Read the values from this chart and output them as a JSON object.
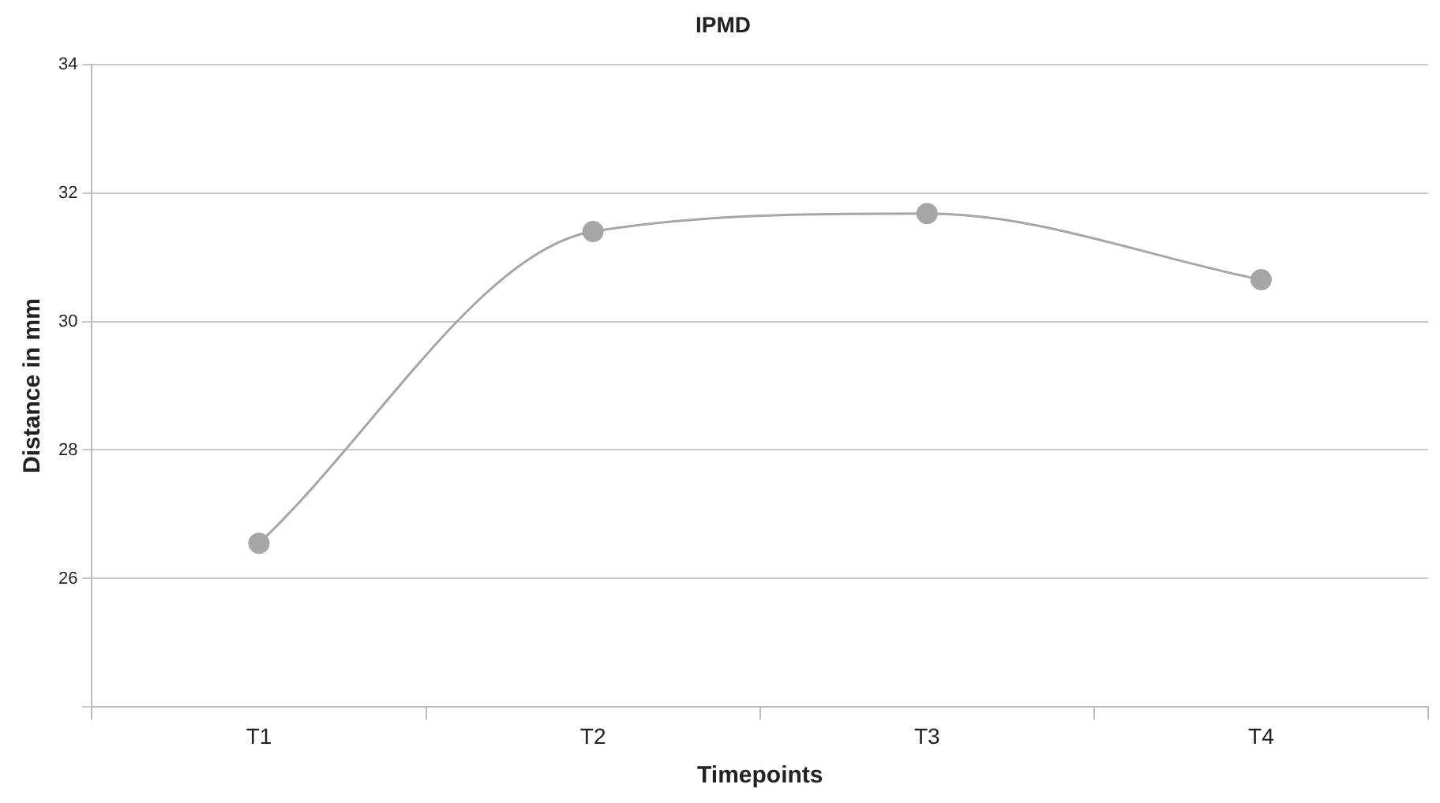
{
  "chart_data": {
    "type": "line",
    "title": "IPMD",
    "xlabel": "Timepoints",
    "ylabel": "Distance in mm",
    "categories": [
      "T1",
      "T2",
      "T3",
      "T4"
    ],
    "series": [
      {
        "color": "#a6a6a6",
        "values": [
          26.55,
          31.4,
          31.68,
          30.65
        ]
      }
    ],
    "ylim": [
      24,
      34
    ],
    "yticks": [
      {
        "value": 24,
        "label": null
      },
      26,
      28,
      30,
      32,
      34
    ],
    "grid": "y",
    "legend": false,
    "marker": "circle",
    "line_style": "solid"
  }
}
